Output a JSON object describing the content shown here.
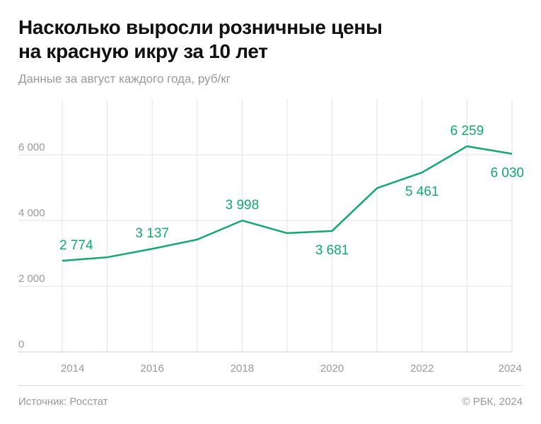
{
  "title_line1": "Насколько выросли розничные цены",
  "title_line2": "на красную икру за 10 лет",
  "subtitle": "Данные за август каждого года, руб/кг",
  "source": "Источник: Росстат",
  "copyright": "© РБК, 2024",
  "colors": {
    "line": "#12a870",
    "grid": "#e3e3e3",
    "axis_text": "#999999"
  },
  "chart_data": {
    "type": "line",
    "x": [
      2014,
      2015,
      2016,
      2017,
      2018,
      2019,
      2020,
      2021,
      2022,
      2023,
      2024
    ],
    "values": [
      2774,
      2880,
      3137,
      3420,
      3998,
      3615,
      3681,
      4985,
      5461,
      6259,
      6030
    ],
    "data_labels": [
      {
        "year": 2014,
        "text": "2 774",
        "pos": "above"
      },
      {
        "year": 2016,
        "text": "3 137",
        "pos": "above"
      },
      {
        "year": 2018,
        "text": "3 998",
        "pos": "above"
      },
      {
        "year": 2020,
        "text": "3 681",
        "pos": "below"
      },
      {
        "year": 2022,
        "text": "5 461",
        "pos": "below"
      },
      {
        "year": 2023,
        "text": "6 259",
        "pos": "above"
      },
      {
        "year": 2024,
        "text": "6 030",
        "pos": "below"
      }
    ],
    "x_ticks": [
      "2014",
      "2016",
      "2018",
      "2020",
      "2022",
      "2024"
    ],
    "y_ticks": [
      {
        "v": 0,
        "t": "0"
      },
      {
        "v": 2000,
        "t": "2 000"
      },
      {
        "v": 4000,
        "t": "4 000"
      },
      {
        "v": 6000,
        "t": "6 000"
      }
    ],
    "ylim": [
      0,
      7700
    ],
    "xlim": [
      2014,
      2024
    ],
    "grid": true
  }
}
